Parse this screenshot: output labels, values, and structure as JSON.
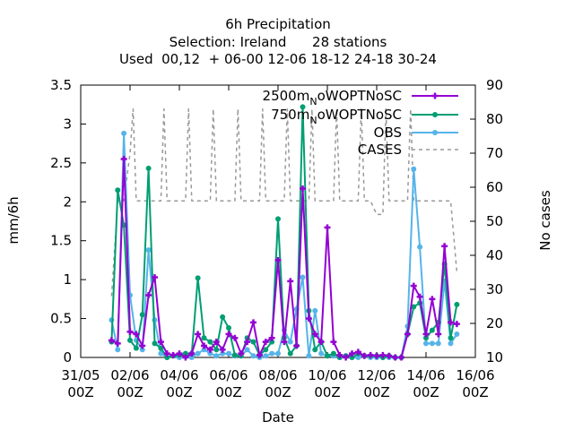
{
  "chart_data": {
    "type": "line",
    "title_lines": [
      "6h Precipitation",
      "Selection: Ireland      28 stations",
      "Used  00,12  + 06-00 12-06 18-12 24-18 30-24"
    ],
    "xlabel": "Date",
    "ylabel": "mm/6h",
    "y2label": "No cases",
    "x_ticks": [
      {
        "t": 0,
        "l1": "31/05",
        "l2": "00Z"
      },
      {
        "t": 8,
        "l1": "02/06",
        "l2": "00Z"
      },
      {
        "t": 16,
        "l1": "04/06",
        "l2": "00Z"
      },
      {
        "t": 24,
        "l1": "06/06",
        "l2": "00Z"
      },
      {
        "t": 32,
        "l1": "08/06",
        "l2": "00Z"
      },
      {
        "t": 40,
        "l1": "10/06",
        "l2": "00Z"
      },
      {
        "t": 48,
        "l1": "12/06",
        "l2": "00Z"
      },
      {
        "t": 56,
        "l1": "14/06",
        "l2": "00Z"
      },
      {
        "t": 64,
        "l1": "16/06",
        "l2": "00Z"
      }
    ],
    "xlim": [
      0,
      64
    ],
    "ylim": [
      0,
      3.5
    ],
    "y_ticks": [
      "0",
      "0.5",
      "1",
      "1.5",
      "2",
      "2.5",
      "3",
      "3.5"
    ],
    "y2lim": [
      10,
      90
    ],
    "y2_ticks": [
      "10",
      "20",
      "30",
      "40",
      "50",
      "60",
      "70",
      "80",
      "90"
    ],
    "legend_position": "top-right",
    "series": [
      {
        "name": "2500m_N_oWOPTNoSC",
        "color": "#9400d3",
        "marker": "plus",
        "points": [
          [
            5,
            0.22
          ],
          [
            6,
            0.18
          ],
          [
            7,
            2.55
          ],
          [
            8,
            0.33
          ],
          [
            9,
            0.3
          ],
          [
            10,
            0.15
          ],
          [
            11,
            0.8
          ],
          [
            12,
            1.03
          ],
          [
            13,
            0.2
          ],
          [
            14,
            0.05
          ],
          [
            15,
            0.03
          ],
          [
            16,
            0.05
          ],
          [
            17,
            0.0
          ],
          [
            18,
            0.05
          ],
          [
            19,
            0.3
          ],
          [
            20,
            0.15
          ],
          [
            21,
            0.1
          ],
          [
            22,
            0.2
          ],
          [
            23,
            0.1
          ],
          [
            24,
            0.3
          ],
          [
            25,
            0.25
          ],
          [
            26,
            0.05
          ],
          [
            27,
            0.2
          ],
          [
            28,
            0.45
          ],
          [
            29,
            0.03
          ],
          [
            30,
            0.2
          ],
          [
            31,
            0.25
          ],
          [
            32,
            1.25
          ],
          [
            33,
            0.2
          ],
          [
            34,
            0.98
          ],
          [
            35,
            0.15
          ],
          [
            36,
            2.17
          ],
          [
            37,
            0.5
          ],
          [
            38,
            0.3
          ],
          [
            39,
            0.2
          ],
          [
            40,
            1.67
          ],
          [
            41,
            0.2
          ],
          [
            42,
            0.03
          ],
          [
            43,
            0.0
          ],
          [
            44,
            0.05
          ],
          [
            45,
            0.07
          ],
          [
            46,
            0.02
          ],
          [
            47,
            0.03
          ],
          [
            48,
            0.02
          ],
          [
            49,
            0.03
          ],
          [
            50,
            0.02
          ],
          [
            51,
            0.0
          ],
          [
            52,
            0.0
          ],
          [
            53,
            0.3
          ],
          [
            54,
            0.92
          ],
          [
            55,
            0.78
          ],
          [
            56,
            0.3
          ],
          [
            57,
            0.75
          ],
          [
            58,
            0.3
          ],
          [
            59,
            1.43
          ],
          [
            60,
            0.45
          ],
          [
            61,
            0.43
          ]
        ]
      },
      {
        "name": "750m_N_oWOPTNoSC",
        "color": "#009e73",
        "marker": "filled-circle",
        "points": [
          [
            5,
            0.2
          ],
          [
            6,
            2.15
          ],
          [
            7,
            1.7
          ],
          [
            8,
            0.22
          ],
          [
            9,
            0.12
          ],
          [
            10,
            0.55
          ],
          [
            11,
            2.43
          ],
          [
            12,
            0.18
          ],
          [
            13,
            0.12
          ],
          [
            14,
            0.0
          ],
          [
            15,
            0.02
          ],
          [
            16,
            0.03
          ],
          [
            17,
            0.05
          ],
          [
            18,
            0.05
          ],
          [
            19,
            1.02
          ],
          [
            20,
            0.25
          ],
          [
            21,
            0.2
          ],
          [
            22,
            0.1
          ],
          [
            23,
            0.52
          ],
          [
            24,
            0.38
          ],
          [
            25,
            0.03
          ],
          [
            26,
            0.02
          ],
          [
            27,
            0.25
          ],
          [
            28,
            0.2
          ],
          [
            29,
            0.03
          ],
          [
            30,
            0.1
          ],
          [
            31,
            0.2
          ],
          [
            32,
            1.78
          ],
          [
            33,
            0.25
          ],
          [
            34,
            0.05
          ],
          [
            35,
            0.15
          ],
          [
            36,
            3.22
          ],
          [
            37,
            0.6
          ],
          [
            38,
            0.1
          ],
          [
            39,
            0.2
          ],
          [
            40,
            0.02
          ],
          [
            41,
            0.05
          ],
          [
            42,
            0.0
          ],
          [
            43,
            0.02
          ],
          [
            44,
            0.0
          ],
          [
            45,
            0.05
          ],
          [
            46,
            0.02
          ],
          [
            47,
            0.02
          ],
          [
            48,
            0.02
          ],
          [
            49,
            0.0
          ],
          [
            50,
            0.02
          ],
          [
            51,
            0.0
          ],
          [
            52,
            0.0
          ],
          [
            53,
            0.3
          ],
          [
            54,
            0.65
          ],
          [
            55,
            0.7
          ],
          [
            56,
            0.25
          ],
          [
            57,
            0.35
          ],
          [
            58,
            0.45
          ],
          [
            59,
            1.2
          ],
          [
            60,
            0.25
          ],
          [
            61,
            0.68
          ]
        ]
      },
      {
        "name": "OBS",
        "color": "#56b4e9",
        "marker": "filled-circle",
        "points": [
          [
            5,
            0.48
          ],
          [
            6,
            0.1
          ],
          [
            7,
            2.88
          ],
          [
            8,
            0.8
          ],
          [
            9,
            0.22
          ],
          [
            10,
            0.1
          ],
          [
            11,
            1.38
          ],
          [
            12,
            0.48
          ],
          [
            13,
            0.05
          ],
          [
            14,
            0.0
          ],
          [
            15,
            0.02
          ],
          [
            16,
            0.0
          ],
          [
            17,
            0.02
          ],
          [
            18,
            0.0
          ],
          [
            19,
            0.05
          ],
          [
            20,
            0.1
          ],
          [
            21,
            0.05
          ],
          [
            22,
            0.02
          ],
          [
            23,
            0.05
          ],
          [
            24,
            0.05
          ],
          [
            25,
            0.02
          ],
          [
            26,
            0.02
          ],
          [
            27,
            0.1
          ],
          [
            28,
            0.02
          ],
          [
            29,
            0.0
          ],
          [
            30,
            0.02
          ],
          [
            31,
            0.05
          ],
          [
            32,
            0.05
          ],
          [
            33,
            0.35
          ],
          [
            34,
            0.2
          ],
          [
            35,
            0.62
          ],
          [
            36,
            1.03
          ],
          [
            37,
            0.02
          ],
          [
            38,
            0.6
          ],
          [
            39,
            0.05
          ],
          [
            40,
            0.02
          ],
          [
            41,
            0.02
          ],
          [
            42,
            0.0
          ],
          [
            43,
            0.02
          ],
          [
            44,
            0.0
          ],
          [
            45,
            0.0
          ],
          [
            46,
            0.02
          ],
          [
            47,
            0.0
          ],
          [
            48,
            0.0
          ],
          [
            49,
            0.0
          ],
          [
            50,
            0.0
          ],
          [
            51,
            0.0
          ],
          [
            52,
            0.0
          ],
          [
            53,
            0.4
          ],
          [
            54,
            2.42
          ],
          [
            55,
            1.42
          ],
          [
            56,
            0.18
          ],
          [
            57,
            0.18
          ],
          [
            58,
            0.18
          ],
          [
            59,
            0.98
          ],
          [
            60,
            0.18
          ],
          [
            61,
            0.3
          ]
        ]
      },
      {
        "name": "CASES",
        "color": "#999999",
        "dashed": true,
        "axis": "y2",
        "points": [
          [
            5,
            28
          ],
          [
            6,
            56
          ],
          [
            7,
            56
          ],
          [
            8,
            70
          ],
          [
            8.5,
            83
          ],
          [
            9,
            56
          ],
          [
            10,
            56
          ],
          [
            11,
            56
          ],
          [
            12,
            56
          ],
          [
            13,
            56
          ],
          [
            13.5,
            83
          ],
          [
            14,
            56
          ],
          [
            15,
            56
          ],
          [
            16,
            56
          ],
          [
            17,
            56
          ],
          [
            17.5,
            83
          ],
          [
            18,
            56
          ],
          [
            19,
            56
          ],
          [
            20,
            56
          ],
          [
            21,
            56
          ],
          [
            21.5,
            83
          ],
          [
            22,
            56
          ],
          [
            23,
            56
          ],
          [
            24,
            56
          ],
          [
            25,
            56
          ],
          [
            25.5,
            83
          ],
          [
            26,
            56
          ],
          [
            27,
            56
          ],
          [
            28,
            56
          ],
          [
            29,
            56
          ],
          [
            29.5,
            83
          ],
          [
            30,
            56
          ],
          [
            31,
            56
          ],
          [
            32,
            56
          ],
          [
            33,
            56
          ],
          [
            33.5,
            83
          ],
          [
            34,
            56
          ],
          [
            35,
            56
          ],
          [
            36,
            56
          ],
          [
            37,
            56
          ],
          [
            37.5,
            83
          ],
          [
            38,
            56
          ],
          [
            39,
            56
          ],
          [
            40,
            56
          ],
          [
            41,
            56
          ],
          [
            41.5,
            83
          ],
          [
            42,
            56
          ],
          [
            43,
            56
          ],
          [
            44,
            56
          ],
          [
            45,
            56
          ],
          [
            45.5,
            83
          ],
          [
            46,
            56
          ],
          [
            47,
            56
          ],
          [
            48,
            52
          ],
          [
            49,
            52
          ],
          [
            49.5,
            83
          ],
          [
            50,
            56
          ],
          [
            51,
            56
          ],
          [
            52,
            56
          ],
          [
            53,
            56
          ],
          [
            53.5,
            83
          ],
          [
            54,
            56
          ],
          [
            55,
            56
          ],
          [
            56,
            56
          ],
          [
            57,
            56
          ],
          [
            58,
            56
          ],
          [
            59,
            56
          ],
          [
            60,
            56
          ],
          [
            61,
            35
          ]
        ]
      }
    ]
  }
}
